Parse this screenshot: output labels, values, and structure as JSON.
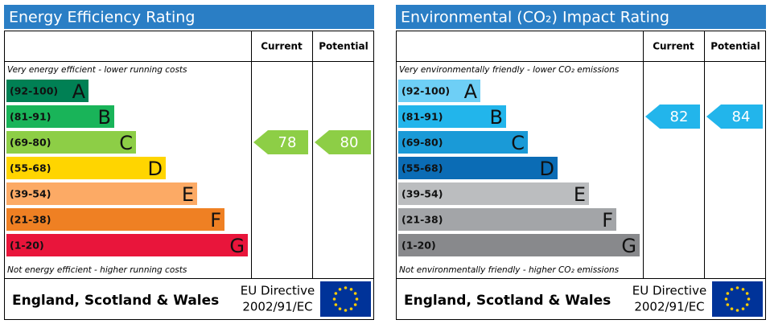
{
  "panels": [
    {
      "title": "Energy Efficiency Rating",
      "current_label": "Current",
      "potential_label": "Potential",
      "top_note": "Very energy efficient - lower running costs",
      "bottom_note": "Not energy efficient - higher running costs",
      "bands": [
        {
          "range": "(92-100)",
          "letter": "A",
          "color": "#008054"
        },
        {
          "range": "(81-91)",
          "letter": "B",
          "color": "#19b459"
        },
        {
          "range": "(69-80)",
          "letter": "C",
          "color": "#8dce46"
        },
        {
          "range": "(55-68)",
          "letter": "D",
          "color": "#ffd500"
        },
        {
          "range": "(39-54)",
          "letter": "E",
          "color": "#fcaa65"
        },
        {
          "range": "(21-38)",
          "letter": "F",
          "color": "#ef8023"
        },
        {
          "range": "(1-20)",
          "letter": "G",
          "color": "#e9153b"
        }
      ],
      "current": 78,
      "potential": 80,
      "region": "England, Scotland & Wales",
      "directive": "EU Directive",
      "directive_code": "2002/91/EC"
    },
    {
      "title": "Environmental (CO₂) Impact Rating",
      "current_label": "Current",
      "potential_label": "Potential",
      "top_note": "Very environmentally friendly - lower CO₂ emissions",
      "bottom_note": "Not environmentally friendly - higher CO₂ emissions",
      "bands": [
        {
          "range": "(92-100)",
          "letter": "A",
          "color": "#6ecff6"
        },
        {
          "range": "(81-91)",
          "letter": "B",
          "color": "#22b5eb"
        },
        {
          "range": "(69-80)",
          "letter": "C",
          "color": "#1a9ad7"
        },
        {
          "range": "(55-68)",
          "letter": "D",
          "color": "#0b6cb5"
        },
        {
          "range": "(39-54)",
          "letter": "E",
          "color": "#bbbdbf"
        },
        {
          "range": "(21-38)",
          "letter": "F",
          "color": "#a3a5a8"
        },
        {
          "range": "(1-20)",
          "letter": "G",
          "color": "#88898c"
        }
      ],
      "current": 82,
      "potential": 84,
      "region": "England, Scotland & Wales",
      "directive": "EU Directive",
      "directive_code": "2002/91/EC"
    }
  ]
}
